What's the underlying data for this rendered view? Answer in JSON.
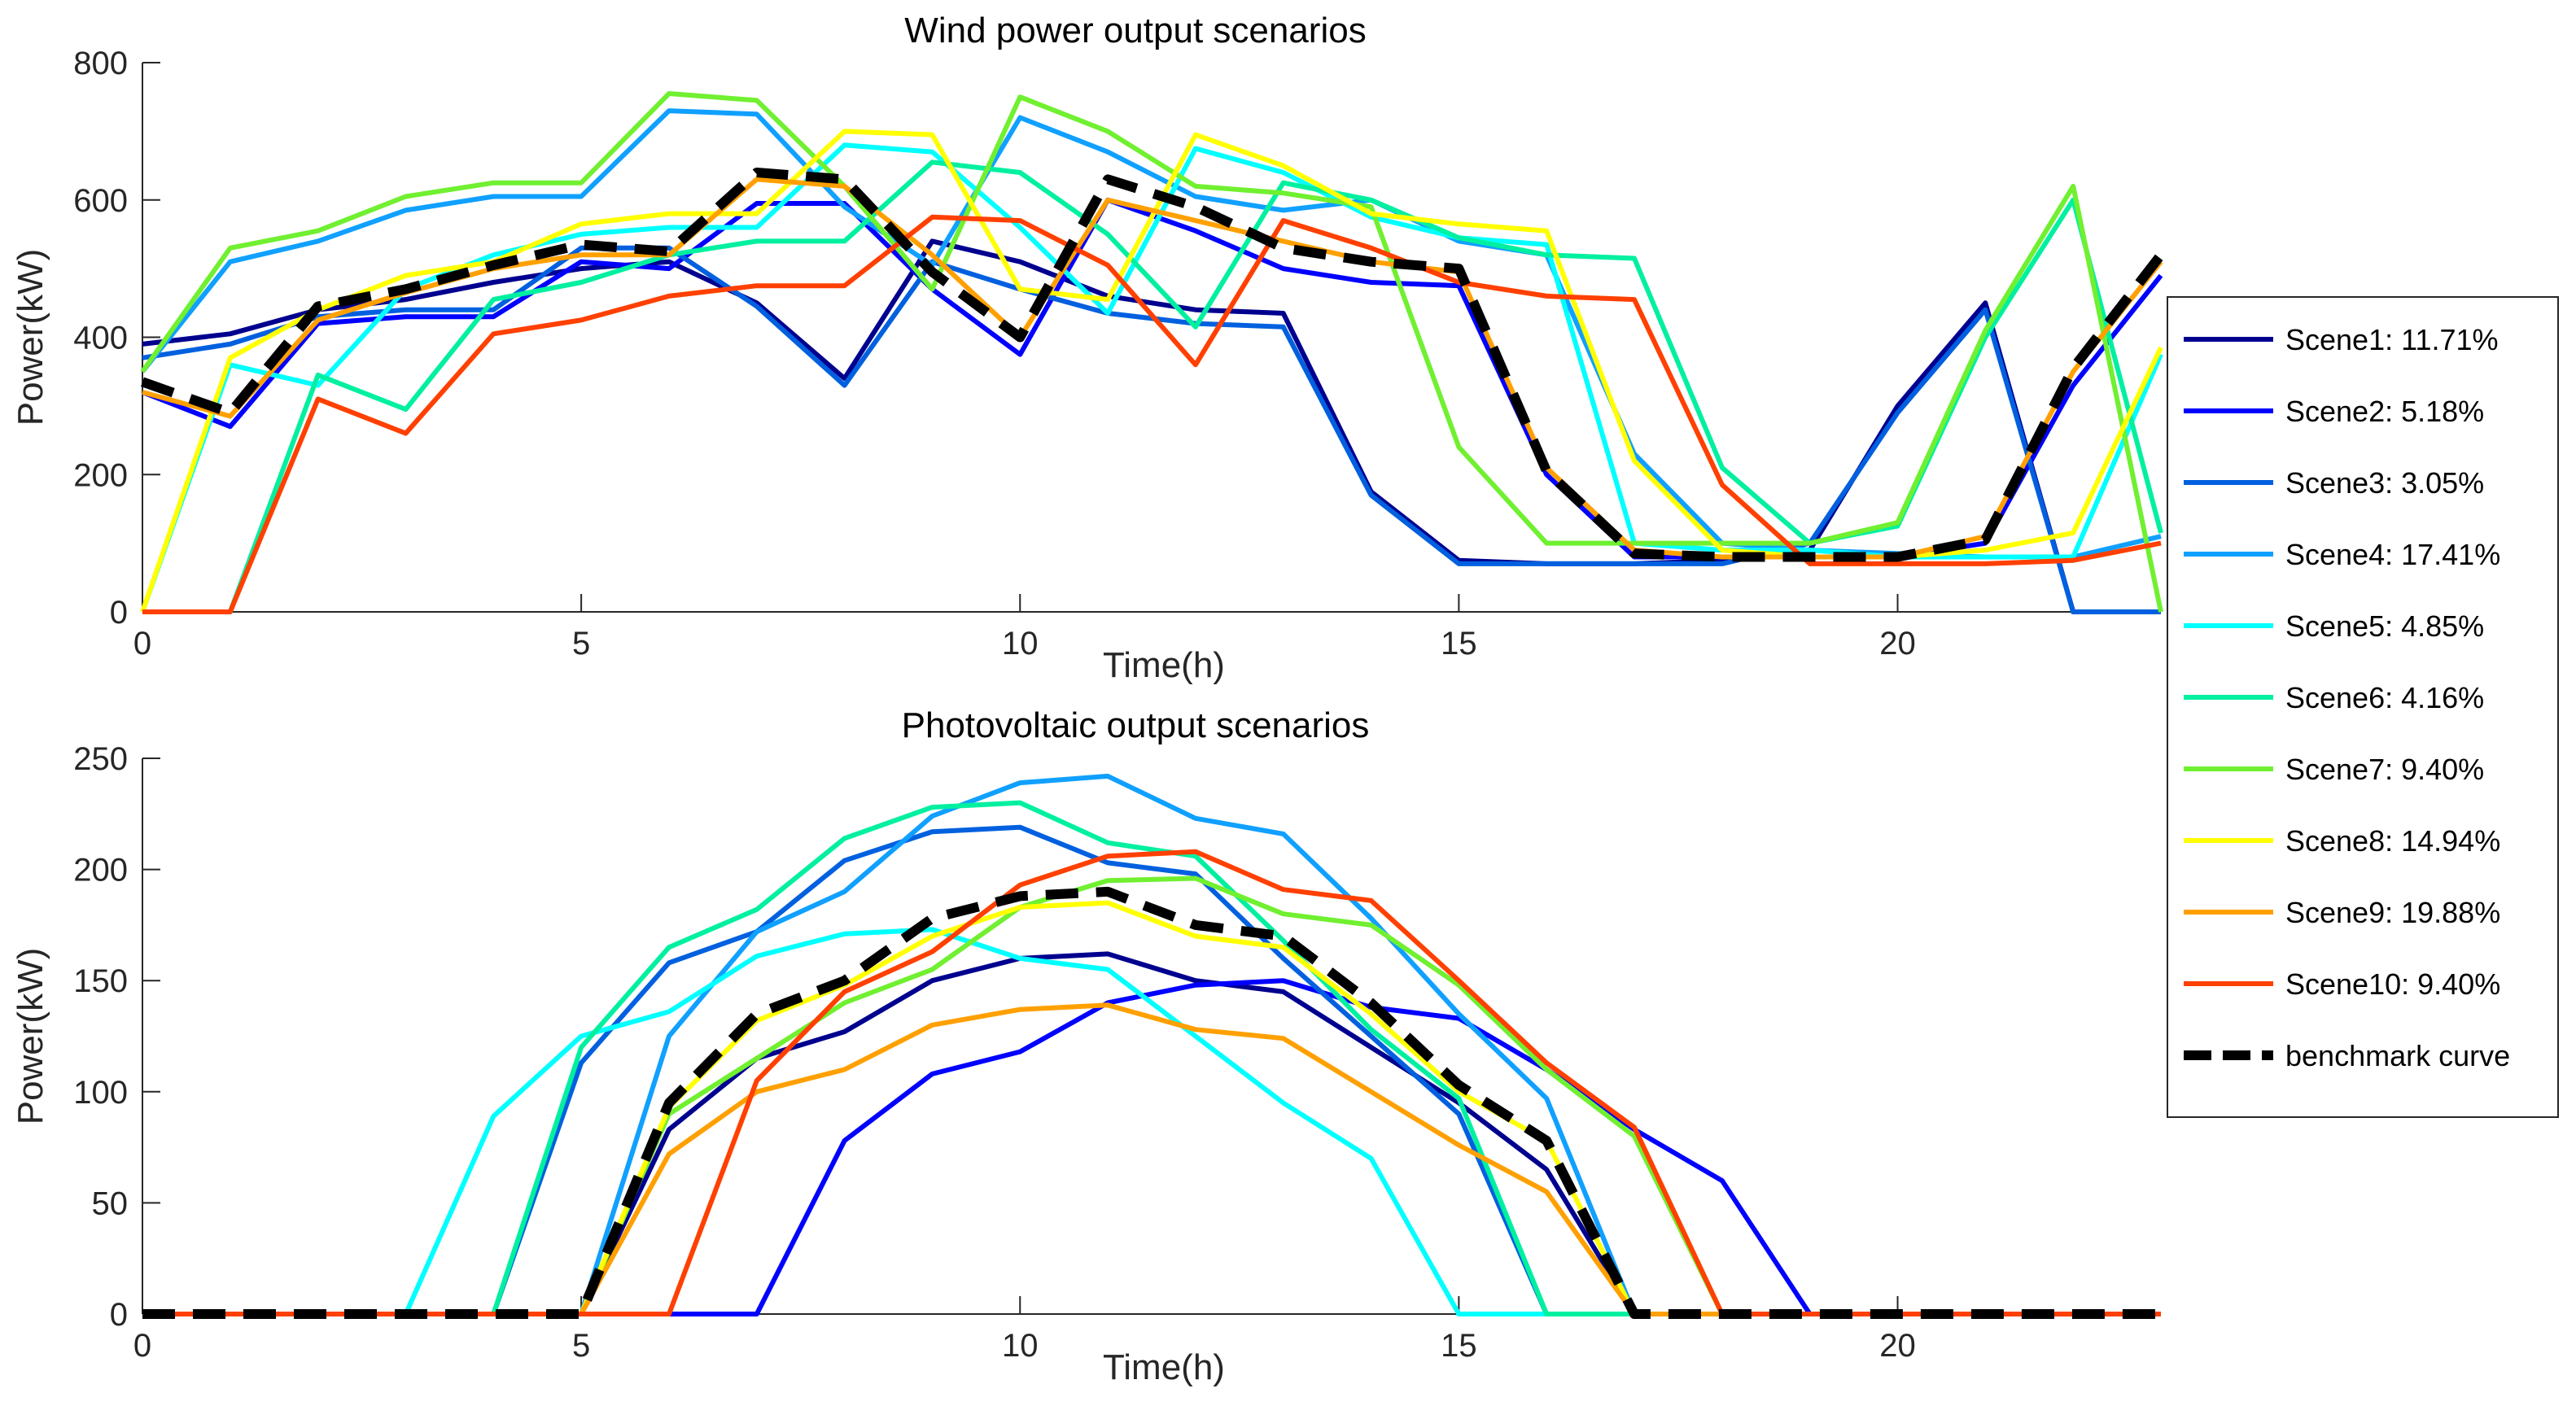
{
  "chart_data": [
    {
      "type": "line",
      "title": "Wind power output scenarios",
      "xlabel": "Time(h)",
      "ylabel": "Power(kW)",
      "xlim": [
        0,
        23
      ],
      "ylim": [
        0,
        800
      ],
      "xticks": [
        0,
        5,
        10,
        15,
        20
      ],
      "yticks": [
        0,
        200,
        400,
        600,
        800
      ],
      "grid": false,
      "x": [
        0,
        1,
        2,
        3,
        4,
        5,
        6,
        7,
        8,
        9,
        10,
        11,
        12,
        13,
        14,
        15,
        16,
        17,
        18,
        19,
        20,
        21,
        22,
        23
      ],
      "series": [
        {
          "name": "Scene1: 11.71%",
          "color": "#00008f",
          "values": [
            390,
            405,
            440,
            455,
            480,
            500,
            510,
            450,
            340,
            540,
            510,
            460,
            440,
            435,
            175,
            75,
            70,
            70,
            75,
            90,
            300,
            450,
            0,
            0
          ]
        },
        {
          "name": "Scene2: 5.18%",
          "color": "#0000ff",
          "values": [
            320,
            270,
            420,
            430,
            430,
            510,
            500,
            595,
            595,
            470,
            375,
            600,
            555,
            500,
            480,
            475,
            200,
            80,
            80,
            80,
            80,
            100,
            330,
            490
          ]
        },
        {
          "name": "Scene3: 3.05%",
          "color": "#0060df",
          "values": [
            370,
            390,
            430,
            440,
            440,
            530,
            530,
            445,
            330,
            510,
            470,
            435,
            420,
            415,
            170,
            70,
            70,
            70,
            70,
            100,
            290,
            440,
            0,
            0
          ]
        },
        {
          "name": "Scene4: 17.41%",
          "color": "#10a0ff",
          "values": [
            350,
            510,
            540,
            585,
            605,
            605,
            730,
            725,
            590,
            505,
            720,
            670,
            605,
            585,
            600,
            540,
            520,
            230,
            100,
            90,
            85,
            80,
            80,
            110
          ]
        },
        {
          "name": "Scene5: 4.85%",
          "color": "#00ffff",
          "values": [
            0,
            360,
            330,
            470,
            520,
            550,
            560,
            560,
            680,
            670,
            560,
            435,
            675,
            640,
            575,
            545,
            535,
            100,
            90,
            90,
            80,
            80,
            80,
            375
          ]
        },
        {
          "name": "Scene6: 4.16%",
          "color": "#00f0a0",
          "values": [
            0,
            0,
            345,
            295,
            455,
            480,
            520,
            540,
            540,
            655,
            640,
            550,
            415,
            625,
            600,
            545,
            520,
            515,
            210,
            100,
            125,
            400,
            600,
            115
          ]
        },
        {
          "name": "Scene7: 9.40%",
          "color": "#70f030",
          "values": [
            350,
            530,
            555,
            605,
            625,
            625,
            755,
            745,
            620,
            470,
            750,
            700,
            620,
            610,
            590,
            240,
            100,
            100,
            100,
            100,
            130,
            410,
            620,
            0
          ]
        },
        {
          "name": "Scene8: 14.94%",
          "color": "#ffff00",
          "values": [
            0,
            370,
            440,
            490,
            510,
            565,
            580,
            580,
            700,
            695,
            470,
            455,
            695,
            650,
            580,
            565,
            555,
            220,
            90,
            80,
            80,
            90,
            115,
            385
          ]
        },
        {
          "name": "Scene9: 19.88%",
          "color": "#ffa000",
          "values": [
            320,
            285,
            425,
            465,
            500,
            520,
            520,
            630,
            620,
            520,
            400,
            600,
            570,
            540,
            510,
            495,
            210,
            90,
            80,
            80,
            80,
            110,
            350,
            510
          ]
        },
        {
          "name": "Scene10: 9.40%",
          "color": "#ff4000",
          "values": [
            0,
            0,
            310,
            260,
            405,
            425,
            460,
            475,
            475,
            575,
            570,
            505,
            360,
            570,
            530,
            480,
            460,
            455,
            185,
            70,
            70,
            70,
            75,
            100
          ]
        },
        {
          "name": "benchmark curve",
          "color": "#000000",
          "dashed": true,
          "values": [
            335,
            290,
            445,
            470,
            505,
            535,
            525,
            640,
            630,
            495,
            400,
            630,
            590,
            530,
            510,
            500,
            205,
            85,
            80,
            80,
            80,
            105,
            355,
            520
          ]
        }
      ]
    },
    {
      "type": "line",
      "title": "Photovoltaic output scenarios",
      "xlabel": "Time(h)",
      "ylabel": "Power(kW)",
      "xlim": [
        0,
        23
      ],
      "ylim": [
        0,
        250
      ],
      "xticks": [
        0,
        5,
        10,
        15,
        20
      ],
      "yticks": [
        0,
        50,
        100,
        150,
        200,
        250
      ],
      "grid": false,
      "x": [
        0,
        1,
        2,
        3,
        4,
        5,
        6,
        7,
        8,
        9,
        10,
        11,
        12,
        13,
        14,
        15,
        16,
        17,
        18,
        19,
        20,
        21,
        22,
        23
      ],
      "series": [
        {
          "name": "Scene1: 11.71%",
          "color": "#00008f",
          "values": [
            0,
            0,
            0,
            0,
            0,
            0,
            83,
            115,
            127,
            150,
            160,
            162,
            150,
            145,
            120,
            95,
            65,
            0,
            0,
            0,
            0,
            0,
            0,
            0
          ]
        },
        {
          "name": "Scene2: 5.18%",
          "color": "#0000ff",
          "values": [
            0,
            0,
            0,
            0,
            0,
            0,
            0,
            0,
            78,
            108,
            118,
            140,
            148,
            150,
            138,
            133,
            110,
            83,
            60,
            0,
            0,
            0,
            0,
            0
          ]
        },
        {
          "name": "Scene3: 3.05%",
          "color": "#0060df",
          "values": [
            0,
            0,
            0,
            0,
            0,
            113,
            158,
            172,
            204,
            217,
            219,
            203,
            198,
            160,
            125,
            90,
            0,
            0,
            0,
            0,
            0,
            0,
            0,
            0
          ]
        },
        {
          "name": "Scene4: 17.41%",
          "color": "#10a0ff",
          "values": [
            0,
            0,
            0,
            0,
            0,
            0,
            125,
            172,
            190,
            224,
            239,
            242,
            223,
            216,
            178,
            135,
            97,
            0,
            0,
            0,
            0,
            0,
            0,
            0
          ]
        },
        {
          "name": "Scene5: 4.85%",
          "color": "#00ffff",
          "values": [
            0,
            0,
            0,
            0,
            89,
            125,
            136,
            161,
            171,
            173,
            160,
            155,
            125,
            95,
            70,
            0,
            0,
            0,
            0,
            0,
            0,
            0,
            0,
            0
          ]
        },
        {
          "name": "Scene6: 4.16%",
          "color": "#00f0a0",
          "values": [
            0,
            0,
            0,
            0,
            0,
            120,
            165,
            182,
            214,
            228,
            230,
            212,
            206,
            168,
            128,
            97,
            0,
            0,
            0,
            0,
            0,
            0,
            0,
            0
          ]
        },
        {
          "name": "Scene7: 9.40%",
          "color": "#70f030",
          "values": [
            0,
            0,
            0,
            0,
            0,
            0,
            90,
            115,
            140,
            155,
            183,
            195,
            196,
            180,
            175,
            148,
            110,
            80,
            0,
            0,
            0,
            0,
            0,
            0
          ]
        },
        {
          "name": "Scene8: 14.94%",
          "color": "#ffff00",
          "values": [
            0,
            0,
            0,
            0,
            0,
            0,
            93,
            132,
            148,
            170,
            183,
            185,
            170,
            165,
            135,
            100,
            78,
            0,
            0,
            0,
            0,
            0,
            0,
            0
          ]
        },
        {
          "name": "Scene9: 19.88%",
          "color": "#ffa000",
          "values": [
            0,
            0,
            0,
            0,
            0,
            0,
            72,
            100,
            110,
            130,
            137,
            139,
            128,
            124,
            100,
            76,
            55,
            0,
            0,
            0,
            0,
            0,
            0,
            0
          ]
        },
        {
          "name": "Scene10: 9.40%",
          "color": "#ff4000",
          "values": [
            0,
            0,
            0,
            0,
            0,
            0,
            0,
            105,
            145,
            163,
            193,
            206,
            208,
            191,
            186,
            150,
            113,
            84,
            0,
            0,
            0,
            0,
            0,
            0
          ]
        },
        {
          "name": "benchmark curve",
          "color": "#000000",
          "dashed": true,
          "values": [
            0,
            0,
            0,
            0,
            0,
            0,
            95,
            135,
            150,
            178,
            188,
            190,
            175,
            170,
            140,
            103,
            78,
            0,
            0,
            0,
            0,
            0,
            0,
            0
          ]
        }
      ]
    }
  ]
}
